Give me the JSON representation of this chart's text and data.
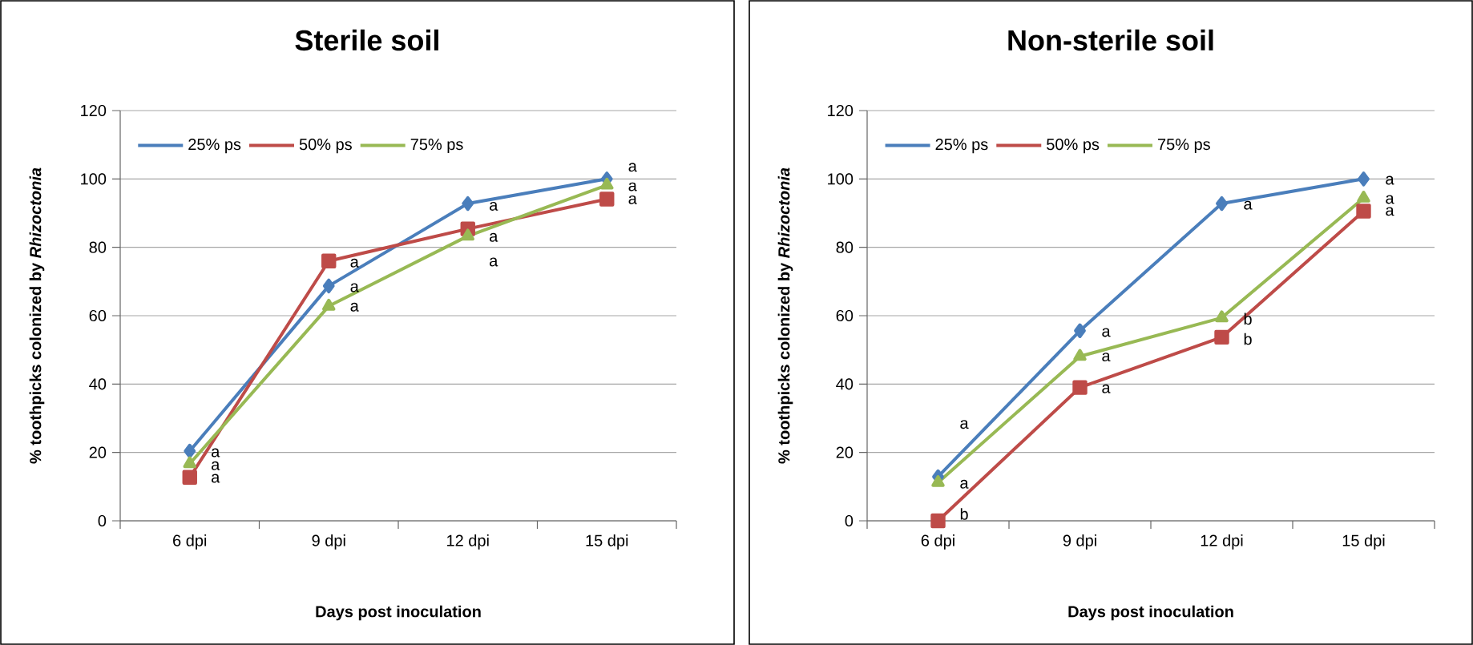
{
  "chart_data": [
    {
      "type": "line",
      "title": "Sterile soil",
      "xlabel": "Days post inoculation",
      "ylabel": "% toothpicks colonized by *Rhizoctonia*",
      "categories": [
        "6 dpi",
        "9 dpi",
        "12 dpi",
        "15 dpi"
      ],
      "ylim": [
        0,
        120
      ],
      "yticks": [
        0,
        20,
        40,
        60,
        80,
        100,
        120
      ],
      "grid": "y",
      "legend": "top left",
      "line_style": "solid",
      "series": [
        {
          "name": "25% ps",
          "color": "#4a7ebb",
          "marker": "diamond",
          "values": [
            20.4,
            68.7,
            92.8,
            100
          ]
        },
        {
          "name": "50% ps",
          "color": "#be4b48",
          "marker": "square",
          "values": [
            12.7,
            76.0,
            85.4,
            94.1
          ]
        },
        {
          "name": "75% ps",
          "color": "#98b954",
          "marker": "triangle",
          "values": [
            16.7,
            62.8,
            83.3,
            98.2
          ]
        }
      ],
      "annotations": [
        {
          "text": "a",
          "x": "6 dpi",
          "y": 19.9
        },
        {
          "text": "a",
          "x": "6 dpi",
          "y": 16.1
        },
        {
          "text": "a",
          "x": "6 dpi",
          "y": 12.4
        },
        {
          "text": "a",
          "x": "9 dpi",
          "y": 75.4
        },
        {
          "text": "a",
          "x": "9 dpi",
          "y": 68.2
        },
        {
          "text": "a",
          "x": "9 dpi",
          "y": 62.5
        },
        {
          "text": "a",
          "x": "12 dpi",
          "y": 92
        },
        {
          "text": "a",
          "x": "12 dpi",
          "y": 82.9
        },
        "a",
        "a",
        {
          "text": "a",
          "x": "15 dpi",
          "y": 97.7
        },
        {
          "text": "a",
          "x": "15 dpi",
          "y": 93.9
        }
      ]
    },
    {
      "type": "line",
      "title": "Non-sterile soil",
      "xlabel": "Days post inoculation",
      "ylabel": "% toothpicks colonized by *Rhizoctonia*",
      "categories": [
        "6 dpi",
        "9 dpi",
        "12 dpi",
        "15 dpi"
      ],
      "ylim": [
        0,
        120
      ],
      "yticks": [
        0,
        20,
        40,
        60,
        80,
        100,
        120
      ],
      "grid": "y",
      "legend": "top left",
      "line_style": "solid",
      "series": [
        {
          "name": "25% ps",
          "color": "#4a7ebb",
          "marker": "diamond",
          "values": [
            12.9,
            55.6,
            92.8,
            100
          ]
        },
        {
          "name": "50% ps",
          "color": "#be4b48",
          "marker": "square",
          "values": [
            0,
            39.0,
            53.7,
            90.6
          ]
        },
        {
          "name": "75% ps",
          "color": "#98b954",
          "marker": "triangle",
          "values": [
            11.2,
            48.1,
            59.4,
            94.4
          ]
        }
      ],
      "annotations": [
        "a",
        {
          "text": "a",
          "x": "6 dpi",
          "y": 10.7
        },
        {
          "text": "b",
          "x": "6 dpi",
          "y": 2.0
        },
        {
          "text": "a",
          "x": "9 dpi",
          "y": 55.1
        },
        {
          "text": "a",
          "x": "9 dpi",
          "y": 47.9
        },
        {
          "text": "a",
          "x": "9 dpi",
          "y": 38.6
        },
        {
          "text": "a",
          "x": "12 dpi",
          "y": 92.3
        },
        {
          "text": "b",
          "x": "12 dpi",
          "y": 59.1
        },
        {
          "text": "b",
          "x": "12 dpi",
          "y": 53.2
        },
        {
          "text": "a",
          "x": "15 dpi",
          "y": 99.6
        },
        {
          "text": "a",
          "x": "15 dpi",
          "y": 94.0
        },
        {
          "text": "a",
          "x": "15 dpi",
          "y": 90.5
        }
      ]
    }
  ]
}
